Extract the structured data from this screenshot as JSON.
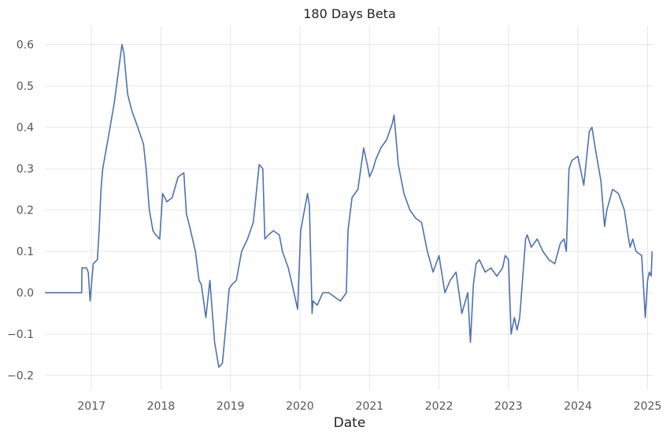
{
  "chart_data": {
    "type": "line",
    "title": "180 Days Beta",
    "xlabel": "Date",
    "ylabel": "",
    "xlim": [
      "2016-05-01",
      "2025-02-01"
    ],
    "ylim": [
      -0.235,
      0.645
    ],
    "grid": true,
    "x_ticks": [
      "2017",
      "2018",
      "2019",
      "2020",
      "2021",
      "2022",
      "2023",
      "2024",
      "2025"
    ],
    "y_ticks": [
      "−0.2",
      "−0.1",
      "0.0",
      "0.1",
      "0.2",
      "0.3",
      "0.4",
      "0.5",
      "0.6"
    ],
    "y_tick_values": [
      -0.2,
      -0.1,
      0.0,
      0.1,
      0.2,
      0.3,
      0.4,
      0.5,
      0.6
    ],
    "color": "#4c72b0",
    "series": [
      {
        "x": [
          "2016-05-01",
          "2016-11-10",
          "2016-11-12",
          "2016-12-05",
          "2016-12-15",
          "2016-12-25",
          "2017-01-10",
          "2017-02-01",
          "2017-02-10",
          "2017-02-20",
          "2017-03-01",
          "2017-04-01",
          "2017-05-01",
          "2017-06-10",
          "2017-06-20",
          "2017-07-10",
          "2017-08-01",
          "2017-09-01",
          "2017-10-01",
          "2017-10-15",
          "2017-11-01",
          "2017-11-20",
          "2017-12-05",
          "2017-12-25",
          "2018-01-10",
          "2018-02-01",
          "2018-03-01",
          "2018-04-01",
          "2018-05-01",
          "2018-05-15",
          "2018-06-01",
          "2018-07-01",
          "2018-07-20",
          "2018-08-01",
          "2018-08-25",
          "2018-09-15",
          "2018-10-10",
          "2018-11-01",
          "2018-11-20",
          "2018-12-10",
          "2018-12-25",
          "2019-01-10",
          "2019-02-01",
          "2019-03-01",
          "2019-04-01",
          "2019-05-01",
          "2019-06-01",
          "2019-06-20",
          "2019-07-01",
          "2019-07-20",
          "2019-08-15",
          "2019-09-15",
          "2019-10-01",
          "2019-11-01",
          "2019-12-01",
          "2019-12-20",
          "2020-01-05",
          "2020-01-25",
          "2020-02-10",
          "2020-02-20",
          "2020-03-05",
          "2020-03-10",
          "2020-04-01",
          "2020-05-01",
          "2020-06-01",
          "2020-07-01",
          "2020-08-01",
          "2020-09-01",
          "2020-09-10",
          "2020-10-01",
          "2020-11-01",
          "2020-12-01",
          "2020-12-20",
          "2021-01-01",
          "2021-01-20",
          "2021-02-01",
          "2021-03-01",
          "2021-04-01",
          "2021-05-01",
          "2021-05-10",
          "2021-06-01",
          "2021-07-01",
          "2021-08-01",
          "2021-09-01",
          "2021-10-01",
          "2021-11-01",
          "2021-12-01",
          "2022-01-01",
          "2022-02-01",
          "2022-03-01",
          "2022-04-01",
          "2022-05-01",
          "2022-06-01",
          "2022-06-15",
          "2022-07-01",
          "2022-07-15",
          "2022-08-01",
          "2022-09-01",
          "2022-10-01",
          "2022-11-01",
          "2022-12-01",
          "2022-12-15",
          "2023-01-01",
          "2023-01-15",
          "2023-02-01",
          "2023-02-15",
          "2023-03-01",
          "2023-04-01",
          "2023-04-10",
          "2023-05-01",
          "2023-06-01",
          "2023-07-01",
          "2023-08-01",
          "2023-09-01",
          "2023-10-01",
          "2023-10-20",
          "2023-11-01",
          "2023-11-15",
          "2023-12-01",
          "2024-01-01",
          "2024-02-01",
          "2024-03-01",
          "2024-03-15",
          "2024-04-01",
          "2024-05-01",
          "2024-05-20",
          "2024-06-01",
          "2024-07-01",
          "2024-08-01",
          "2024-09-01",
          "2024-09-20",
          "2024-10-01",
          "2024-10-15",
          "2024-11-01",
          "2024-12-01",
          "2024-12-20",
          "2025-01-01",
          "2025-01-10",
          "2025-01-20",
          "2025-01-25"
        ],
        "y": [
          0.0,
          0.0,
          0.06,
          0.06,
          0.05,
          -0.02,
          0.07,
          0.08,
          0.15,
          0.25,
          0.3,
          0.38,
          0.46,
          0.6,
          0.58,
          0.48,
          0.44,
          0.4,
          0.36,
          0.3,
          0.2,
          0.15,
          0.14,
          0.13,
          0.24,
          0.22,
          0.23,
          0.28,
          0.29,
          0.19,
          0.16,
          0.1,
          0.03,
          0.02,
          -0.06,
          0.03,
          -0.12,
          -0.18,
          -0.17,
          -0.07,
          0.01,
          0.02,
          0.03,
          0.1,
          0.13,
          0.17,
          0.31,
          0.3,
          0.13,
          0.14,
          0.15,
          0.14,
          0.1,
          0.06,
          0.0,
          -0.04,
          0.15,
          0.2,
          0.24,
          0.21,
          -0.05,
          -0.02,
          -0.03,
          0.0,
          0.0,
          -0.01,
          -0.02,
          0.0,
          0.15,
          0.23,
          0.25,
          0.35,
          0.31,
          0.28,
          0.3,
          0.32,
          0.35,
          0.37,
          0.41,
          0.43,
          0.31,
          0.24,
          0.2,
          0.18,
          0.17,
          0.1,
          0.05,
          0.09,
          0.0,
          0.03,
          0.05,
          -0.05,
          0.0,
          -0.12,
          0.02,
          0.07,
          0.08,
          0.05,
          0.06,
          0.04,
          0.06,
          0.09,
          0.08,
          -0.1,
          -0.06,
          -0.09,
          -0.06,
          0.13,
          0.14,
          0.11,
          0.13,
          0.1,
          0.08,
          0.07,
          0.12,
          0.13,
          0.1,
          0.3,
          0.32,
          0.33,
          0.26,
          0.39,
          0.4,
          0.35,
          0.27,
          0.16,
          0.2,
          0.25,
          0.24,
          0.2,
          0.14,
          0.11,
          0.13,
          0.1,
          0.09,
          -0.06,
          0.03,
          0.05,
          0.04,
          0.1
        ]
      }
    ]
  }
}
